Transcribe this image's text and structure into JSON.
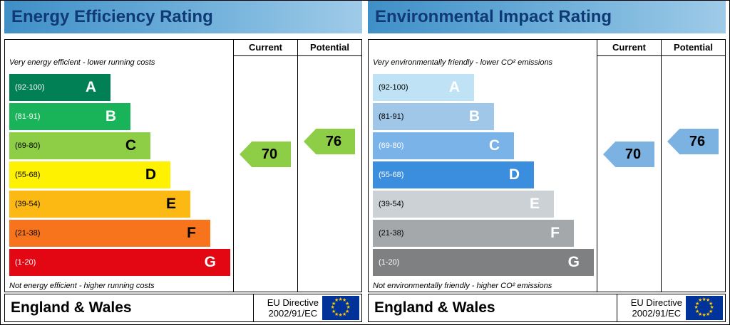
{
  "panels": [
    {
      "title": "Energy Efficiency Rating",
      "current_label": "Current",
      "potential_label": "Potential",
      "top_caption": "Very energy efficient - lower running costs",
      "bottom_caption": "Not energy efficient - higher running costs",
      "bands": [
        {
          "range": "(92-100)",
          "letter": "A",
          "color": "#008054"
        },
        {
          "range": "(81-91)",
          "letter": "B",
          "color": "#19b459"
        },
        {
          "range": "(69-80)",
          "letter": "C",
          "color": "#8dce46"
        },
        {
          "range": "(55-68)",
          "letter": "D",
          "color": "#fff200"
        },
        {
          "range": "(39-54)",
          "letter": "E",
          "color": "#fcb913"
        },
        {
          "range": "(21-38)",
          "letter": "F",
          "color": "#f7741d"
        },
        {
          "range": "(1-20)",
          "letter": "G",
          "color": "#e30613"
        }
      ],
      "current_value": "70",
      "potential_value": "76",
      "arrow_color": "#8dce46",
      "footer_region": "England & Wales",
      "directive_line1": "EU Directive",
      "directive_line2": "2002/91/EC"
    },
    {
      "title": "Environmental Impact Rating",
      "current_label": "Current",
      "potential_label": "Potential",
      "top_caption": "Very environmentally friendly - lower CO² emissions",
      "bottom_caption": "Not environmentally friendly - higher CO² emissions",
      "bands": [
        {
          "range": "(92-100)",
          "letter": "A",
          "color": "#bfe3f5"
        },
        {
          "range": "(81-91)",
          "letter": "B",
          "color": "#a0c6e8"
        },
        {
          "range": "(69-80)",
          "letter": "C",
          "color": "#7ab3e8"
        },
        {
          "range": "(55-68)",
          "letter": "D",
          "color": "#3b8ede"
        },
        {
          "range": "(39-54)",
          "letter": "E",
          "color": "#ccd1d6"
        },
        {
          "range": "(21-38)",
          "letter": "F",
          "color": "#a5a8ab"
        },
        {
          "range": "(1-20)",
          "letter": "G",
          "color": "#7e8081"
        }
      ],
      "current_value": "70",
      "potential_value": "76",
      "arrow_color": "#7cb2e2",
      "footer_region": "England & Wales",
      "directive_line1": "EU Directive",
      "directive_line2": "2002/91/EC"
    }
  ],
  "chart_data": [
    {
      "type": "bar",
      "title": "Energy Efficiency Rating",
      "categories": [
        "A",
        "B",
        "C",
        "D",
        "E",
        "F",
        "G"
      ],
      "band_ranges": [
        "92-100",
        "81-91",
        "69-80",
        "55-68",
        "39-54",
        "21-38",
        "1-20"
      ],
      "band_colors": [
        "#008054",
        "#19b459",
        "#8dce46",
        "#fff200",
        "#fcb913",
        "#f7741d",
        "#e30613"
      ],
      "current": 70,
      "potential": 76,
      "current_band": "C",
      "potential_band": "C",
      "xlim": [
        1,
        100
      ]
    },
    {
      "type": "bar",
      "title": "Environmental Impact Rating",
      "categories": [
        "A",
        "B",
        "C",
        "D",
        "E",
        "F",
        "G"
      ],
      "band_ranges": [
        "92-100",
        "81-91",
        "69-80",
        "55-68",
        "39-54",
        "21-38",
        "1-20"
      ],
      "band_colors": [
        "#bfe3f5",
        "#a0c6e8",
        "#7ab3e8",
        "#3b8ede",
        "#ccd1d6",
        "#a5a8ab",
        "#7e8081"
      ],
      "current": 70,
      "potential": 76,
      "current_band": "C",
      "potential_band": "C",
      "xlim": [
        1,
        100
      ]
    }
  ]
}
